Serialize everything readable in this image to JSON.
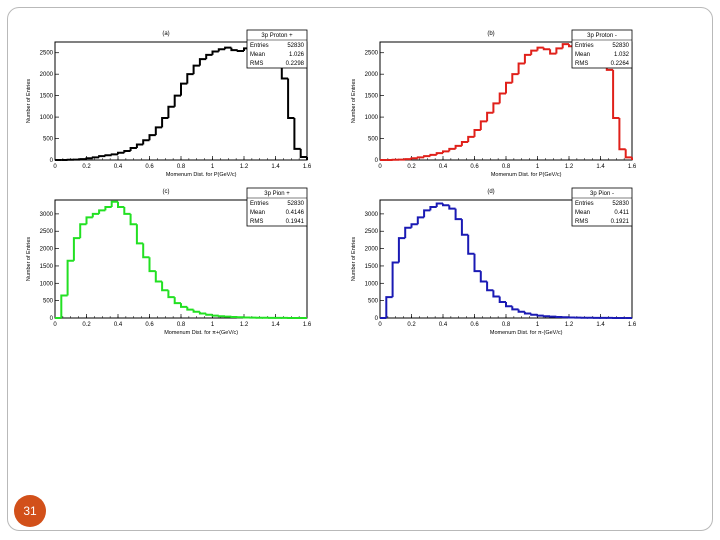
{
  "slide": {
    "page_number": "31",
    "accent_color": "#d2501a"
  },
  "chart_data": [
    {
      "type": "histogram",
      "title": "(a)",
      "xlabel": "Momenum Dist. for P(GeV/c)",
      "ylabel": "Number of Entries",
      "xlim": [
        0,
        1.6
      ],
      "ylim": [
        0,
        2750
      ],
      "xticks": [
        "0",
        "0.2",
        "0.4",
        "0.6",
        "0.8",
        "1",
        "1.2",
        "1.4",
        "1.6"
      ],
      "yticks": [
        "0",
        "500",
        "1000",
        "1500",
        "2000",
        "2500"
      ],
      "xtick_values": [
        0,
        0.2,
        0.4,
        0.6,
        0.8,
        1,
        1.2,
        1.4,
        1.6
      ],
      "ytick_values": [
        0,
        500,
        1000,
        1500,
        2000,
        2500
      ],
      "color": "#000000",
      "bin_width": 0.04,
      "x_start": 0,
      "values": [
        0,
        0,
        5,
        10,
        20,
        40,
        60,
        90,
        110,
        130,
        170,
        210,
        280,
        360,
        460,
        580,
        760,
        980,
        1240,
        1500,
        1780,
        2000,
        2200,
        2350,
        2450,
        2530,
        2580,
        2620,
        2560,
        2540,
        2600,
        2560,
        2580,
        2520,
        2420,
        2200,
        1900,
        980,
        260,
        70
      ],
      "stats": {
        "title": "3p Proton +",
        "rows": [
          [
            "Entries",
            "52830"
          ],
          [
            "Mean",
            "1.026"
          ],
          [
            "RMS",
            "0.2298"
          ]
        ]
      }
    },
    {
      "type": "histogram",
      "title": "(b)",
      "xlabel": "Momenum Dist. for P(GeV/c)",
      "ylabel": "Number of Entries",
      "xlim": [
        0,
        1.6
      ],
      "ylim": [
        0,
        2750
      ],
      "xticks": [
        "0",
        "0.2",
        "0.4",
        "0.6",
        "0.8",
        "1",
        "1.2",
        "1.4",
        "1.6"
      ],
      "yticks": [
        "0",
        "500",
        "1000",
        "1500",
        "2000",
        "2500"
      ],
      "xtick_values": [
        0,
        0.2,
        0.4,
        0.6,
        0.8,
        1,
        1.2,
        1.4,
        1.6
      ],
      "ytick_values": [
        0,
        500,
        1000,
        1500,
        2000,
        2500
      ],
      "color": "#e0201a",
      "bin_width": 0.04,
      "x_start": 0,
      "values": [
        0,
        0,
        5,
        10,
        20,
        40,
        60,
        90,
        120,
        160,
        200,
        260,
        330,
        420,
        540,
        700,
        900,
        1100,
        1320,
        1550,
        1800,
        2000,
        2250,
        2450,
        2550,
        2620,
        2580,
        2480,
        2600,
        2700,
        2650,
        2680,
        2660,
        2620,
        2500,
        2350,
        2100,
        980,
        250,
        60
      ],
      "stats": {
        "title": "3p Proton -",
        "rows": [
          [
            "Entries",
            "52830"
          ],
          [
            "Mean",
            "1.032"
          ],
          [
            "RMS",
            "0.2264"
          ]
        ]
      }
    },
    {
      "type": "histogram",
      "title": "(c)",
      "xlabel": "Momenum Dist. for π+(GeV/c)",
      "ylabel": "Number of Entries",
      "xlim": [
        0,
        1.6
      ],
      "ylim": [
        0,
        3400
      ],
      "xticks": [
        "0",
        "0.2",
        "0.4",
        "0.6",
        "0.8",
        "1",
        "1.2",
        "1.4",
        "1.6"
      ],
      "yticks": [
        "0",
        "500",
        "1000",
        "1500",
        "2000",
        "2500",
        "3000"
      ],
      "xtick_values": [
        0,
        0.2,
        0.4,
        0.6,
        0.8,
        1,
        1.2,
        1.4,
        1.6
      ],
      "ytick_values": [
        0,
        500,
        1000,
        1500,
        2000,
        2500,
        3000
      ],
      "color": "#22e022",
      "bin_width": 0.04,
      "x_start": 0,
      "values": [
        0,
        650,
        1650,
        2300,
        2700,
        2900,
        3000,
        3100,
        3200,
        3350,
        3200,
        3000,
        2700,
        2150,
        1750,
        1350,
        1050,
        800,
        600,
        430,
        320,
        240,
        180,
        130,
        95,
        70,
        50,
        38,
        28,
        20,
        15,
        11,
        8,
        6,
        4,
        3,
        2,
        1,
        0,
        0
      ],
      "stats": {
        "title": "3p Pion +",
        "rows": [
          [
            "Entries",
            "52830"
          ],
          [
            "Mean",
            "0.4146"
          ],
          [
            "RMS",
            "0.1941"
          ]
        ]
      }
    },
    {
      "type": "histogram",
      "title": "(d)",
      "xlabel": "Momenum Dist. for π-(GeV/c)",
      "ylabel": "Number of Entries",
      "xlim": [
        0,
        1.6
      ],
      "ylim": [
        0,
        3400
      ],
      "xticks": [
        "0",
        "0.2",
        "0.4",
        "0.6",
        "0.8",
        "1",
        "1.2",
        "1.4",
        "1.6"
      ],
      "yticks": [
        "0",
        "500",
        "1000",
        "1500",
        "2000",
        "2500",
        "3000"
      ],
      "xtick_values": [
        0,
        0.2,
        0.4,
        0.6,
        0.8,
        1,
        1.2,
        1.4,
        1.6
      ],
      "ytick_values": [
        0,
        500,
        1000,
        1500,
        2000,
        2500,
        3000
      ],
      "color": "#1a1ab4",
      "bin_width": 0.04,
      "x_start": 0,
      "values": [
        0,
        600,
        1600,
        2300,
        2600,
        2700,
        2900,
        3100,
        3200,
        3300,
        3250,
        3150,
        2850,
        2400,
        1850,
        1350,
        1050,
        800,
        620,
        460,
        340,
        250,
        180,
        130,
        95,
        70,
        50,
        38,
        28,
        20,
        15,
        11,
        8,
        6,
        4,
        3,
        2,
        1,
        0,
        0
      ],
      "stats": {
        "title": "3p Pion -",
        "rows": [
          [
            "Entries",
            "52830"
          ],
          [
            "Mean",
            "0.411"
          ],
          [
            "RMS",
            "0.1921"
          ]
        ]
      }
    }
  ]
}
